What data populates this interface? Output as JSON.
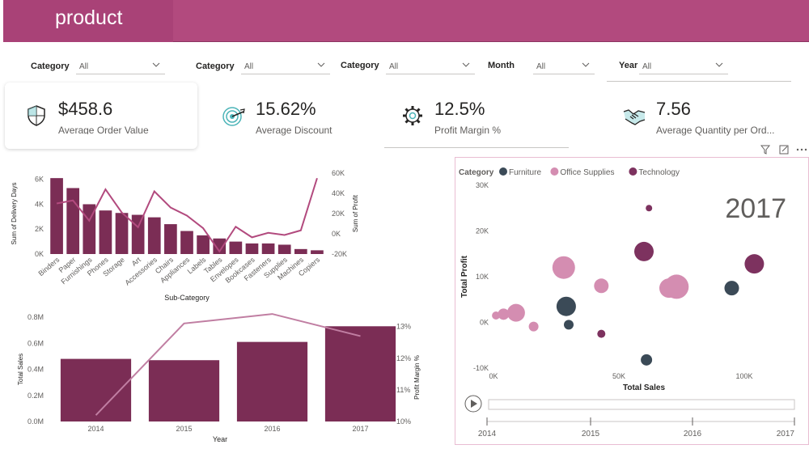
{
  "header": {
    "title": "product"
  },
  "slicers": [
    {
      "label": "Category",
      "value": "All"
    },
    {
      "label": "Category",
      "value": "All"
    },
    {
      "label": "Category",
      "value": "All"
    },
    {
      "label": "Month",
      "value": "All"
    },
    {
      "label": "Year",
      "value": "All"
    }
  ],
  "kpis": [
    {
      "value": "$458.6",
      "label": "Average Order Value",
      "icon": "shield-icon"
    },
    {
      "value": "15.62%",
      "label": "Average Discount",
      "icon": "target-icon"
    },
    {
      "value": "12.5%",
      "label": "Profit Margin %",
      "icon": "gear-icon"
    },
    {
      "value": "7.56",
      "label": "Average Quantity per Ord...",
      "icon": "handshake-icon"
    }
  ],
  "chart_data": [
    {
      "type": "bar+line",
      "xlabel": "Sub-Category",
      "ylabel": "Sum of Delivery Days",
      "y2label": "Sum of Profit",
      "yticks": [
        "0K",
        "2K",
        "4K",
        "6K"
      ],
      "y2ticks": [
        "-20K",
        "0K",
        "20K",
        "40K",
        "60K"
      ],
      "ylim": [
        0,
        6500
      ],
      "y2lim": [
        -20000,
        60000
      ],
      "categories": [
        "Binders",
        "Paper",
        "Furnishings",
        "Phones",
        "Storage",
        "Art",
        "Accessories",
        "Chairs",
        "Appliances",
        "Labels",
        "Tables",
        "Envelopes",
        "Bookcases",
        "Fasteners",
        "Supplies",
        "Machines",
        "Copiers"
      ],
      "bar_values": [
        6100,
        5300,
        4000,
        3500,
        3300,
        3150,
        2950,
        2400,
        1850,
        1500,
        1250,
        1000,
        850,
        850,
        750,
        400,
        300
      ],
      "line_values": [
        30000,
        33000,
        13000,
        44000,
        21000,
        6500,
        42000,
        26000,
        18000,
        5500,
        -17500,
        7000,
        -3500,
        950,
        -1200,
        3400,
        55000
      ]
    },
    {
      "type": "bar+line",
      "xlabel": "Year",
      "ylabel": "Total Sales",
      "y2label": "Profit Margin %",
      "yticks": [
        "0.0M",
        "0.2M",
        "0.4M",
        "0.6M",
        "0.8M"
      ],
      "y2ticks": [
        "10%",
        "11%",
        "12%",
        "13%"
      ],
      "ylim": [
        0,
        0.8
      ],
      "y2lim": [
        10,
        13.3
      ],
      "categories": [
        "2014",
        "2015",
        "2016",
        "2017"
      ],
      "bar_values": [
        0.48,
        0.47,
        0.61,
        0.73
      ],
      "line_values": [
        10.2,
        13.1,
        13.4,
        12.7
      ]
    },
    {
      "type": "scatter",
      "legend_title": "Category",
      "legend": [
        {
          "name": "Furniture",
          "color": "#3b4a57"
        },
        {
          "name": "Office Supplies",
          "color": "#d48db1"
        },
        {
          "name": "Technology",
          "color": "#7d325f"
        }
      ],
      "xlabel": "Total Sales",
      "ylabel": "Total Profit",
      "xticks": [
        "0K",
        "50K",
        "100K"
      ],
      "yticks": [
        "-10K",
        "0K",
        "10K",
        "20K",
        "30K"
      ],
      "xlim": [
        0,
        120000
      ],
      "ylim": [
        -10000,
        30000
      ],
      "play_axis_label": "2017",
      "timeline_ticks": [
        "2014",
        "2015",
        "2016",
        "2017"
      ],
      "points": [
        {
          "series": "Office Supplies",
          "x": 1000,
          "y": 1500,
          "r": 5
        },
        {
          "series": "Office Supplies",
          "x": 4000,
          "y": 1800,
          "r": 7
        },
        {
          "series": "Office Supplies",
          "x": 9000,
          "y": 2100,
          "r": 11
        },
        {
          "series": "Office Supplies",
          "x": 16000,
          "y": -900,
          "r": 6
        },
        {
          "series": "Office Supplies",
          "x": 28000,
          "y": 12000,
          "r": 14
        },
        {
          "series": "Office Supplies",
          "x": 43000,
          "y": 8000,
          "r": 9
        },
        {
          "series": "Office Supplies",
          "x": 70000,
          "y": 7500,
          "r": 12
        },
        {
          "series": "Office Supplies",
          "x": 73000,
          "y": 7800,
          "r": 15
        },
        {
          "series": "Furniture",
          "x": 29000,
          "y": 3500,
          "r": 12
        },
        {
          "series": "Furniture",
          "x": 30000,
          "y": -500,
          "r": 6
        },
        {
          "series": "Furniture",
          "x": 61000,
          "y": -8200,
          "r": 7
        },
        {
          "series": "Furniture",
          "x": 95000,
          "y": 7500,
          "r": 9
        },
        {
          "series": "Technology",
          "x": 43000,
          "y": -2500,
          "r": 5
        },
        {
          "series": "Technology",
          "x": 60000,
          "y": 15500,
          "r": 12
        },
        {
          "series": "Technology",
          "x": 62000,
          "y": 25000,
          "r": 4
        },
        {
          "series": "Technology",
          "x": 104000,
          "y": 12800,
          "r": 12
        }
      ]
    }
  ]
}
